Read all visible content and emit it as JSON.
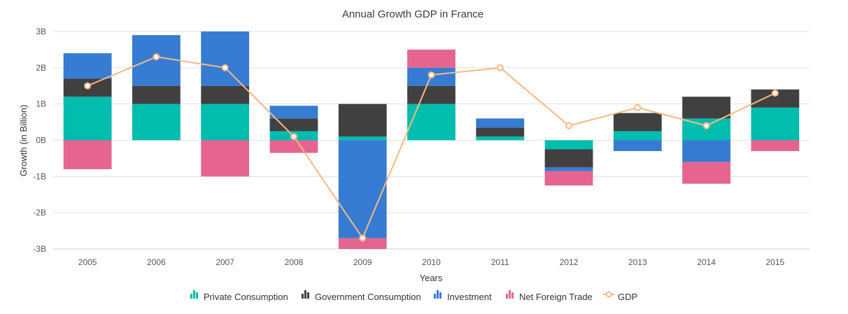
{
  "chart_data": {
    "type": "bar",
    "stacked": true,
    "title": "Annual Growth GDP in France",
    "xlabel": "Years",
    "ylabel": "Growth (in Billion)",
    "ylim": [
      -3,
      3
    ],
    "y_ticks": [
      "3B",
      "2B",
      "1B",
      "0B",
      "-1B",
      "-2B",
      "-3B"
    ],
    "y_tick_values": [
      3,
      2,
      1,
      0,
      -1,
      -2,
      -3
    ],
    "grid": true,
    "legend_position": "bottom",
    "categories": [
      "2005",
      "2006",
      "2007",
      "2008",
      "2009",
      "2010",
      "2011",
      "2012",
      "2013",
      "2014",
      "2015"
    ],
    "series": [
      {
        "name": "Private Consumption",
        "kind": "bar",
        "color": "#00bdae",
        "values": [
          1.2,
          1.0,
          1.0,
          0.25,
          0.1,
          1.0,
          0.1,
          -0.25,
          0.25,
          0.6,
          0.9
        ]
      },
      {
        "name": "Government Consumption",
        "kind": "bar",
        "color": "#404041",
        "values": [
          0.5,
          0.5,
          0.5,
          0.35,
          0.9,
          0.5,
          0.25,
          -0.5,
          0.5,
          0.6,
          0.5
        ]
      },
      {
        "name": "Investment",
        "kind": "bar",
        "color": "#357cd2",
        "values": [
          0.7,
          1.4,
          1.5,
          0.35,
          -2.7,
          0.5,
          0.25,
          -0.1,
          -0.3,
          -0.6,
          0.0
        ]
      },
      {
        "name": "Net Foreign Trade",
        "kind": "bar",
        "color": "#e56590",
        "values": [
          -0.8,
          0.0,
          -1.0,
          -0.35,
          -0.3,
          0.5,
          0.0,
          -0.4,
          0.0,
          -0.6,
          -0.3
        ]
      },
      {
        "name": "GDP",
        "kind": "line",
        "color": "#f8b883",
        "values": [
          1.5,
          2.3,
          2.0,
          0.1,
          -2.7,
          1.8,
          2.0,
          0.4,
          0.9,
          0.4,
          1.3
        ]
      }
    ]
  }
}
